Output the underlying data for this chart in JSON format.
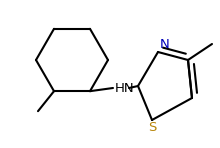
{
  "bg_color": "#ffffff",
  "bond_color": "#000000",
  "bond_lw": 1.5,
  "figsize": [
    2.2,
    1.48
  ],
  "dpi": 100,
  "xlim": [
    0,
    2.2
  ],
  "ylim": [
    0,
    1.48
  ]
}
